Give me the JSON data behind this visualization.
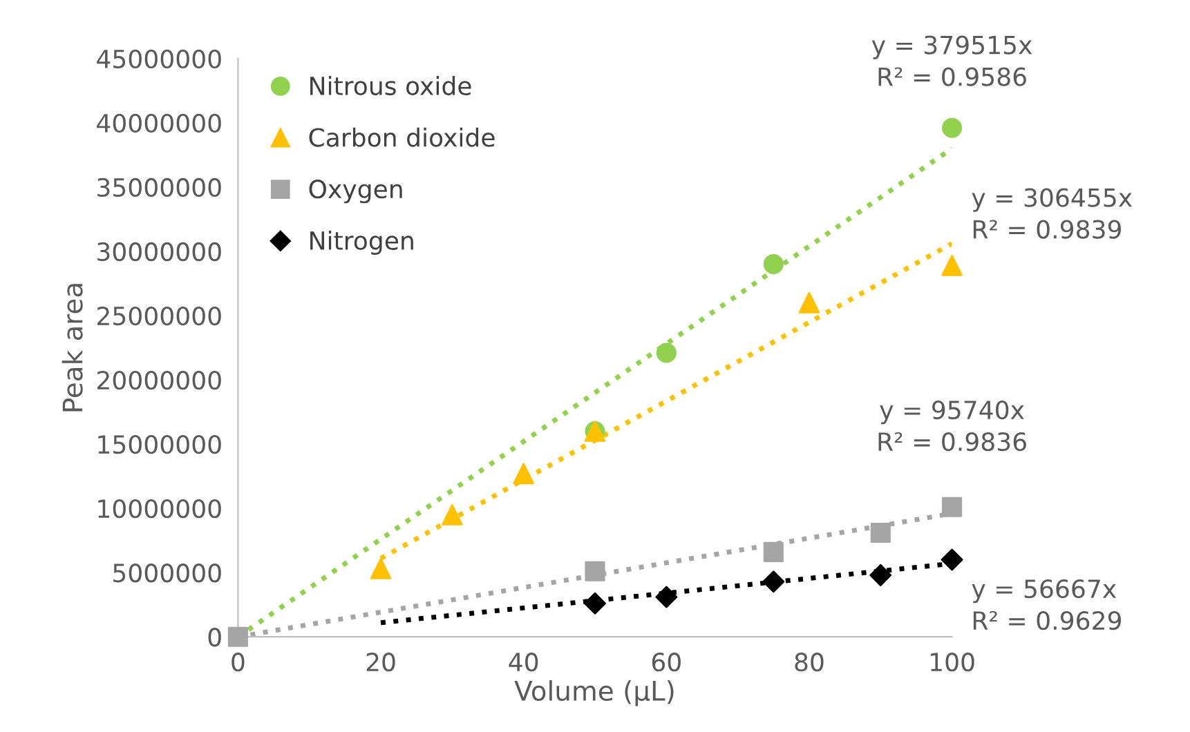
{
  "chart_data": {
    "type": "scatter",
    "xlabel": "Volume (µL)",
    "ylabel": "Peak area",
    "xlim": [
      0,
      100
    ],
    "xticks": [
      0,
      20,
      40,
      60,
      80,
      100
    ],
    "ylim": [
      0,
      45000000
    ],
    "yticks": [
      0,
      5000000,
      10000000,
      15000000,
      20000000,
      25000000,
      30000000,
      35000000,
      40000000,
      45000000
    ],
    "grid": false,
    "legend": "top left",
    "series": [
      {
        "name": "Nitrous oxide",
        "color": "#92d050",
        "marker": "circle",
        "x": [
          50,
          60,
          75,
          100
        ],
        "values": [
          16000000,
          22100000,
          29000000,
          39600000
        ]
      },
      {
        "name": "Carbon dioxide",
        "color": "#ffc000",
        "marker": "triangle",
        "x": [
          20,
          30,
          40,
          50,
          80,
          100
        ],
        "values": [
          5300000,
          9500000,
          12700000,
          16000000,
          26000000,
          28900000
        ]
      },
      {
        "name": "Oxygen",
        "color": "#a5a5a5",
        "marker": "square",
        "x": [
          0,
          50,
          75,
          90,
          100
        ],
        "values": [
          0,
          5100000,
          6600000,
          8100000,
          10100000
        ]
      },
      {
        "name": "Nitrogen",
        "color": "#000000",
        "marker": "diamond",
        "x": [
          50,
          60,
          75,
          90,
          100
        ],
        "values": [
          2600000,
          3100000,
          4300000,
          4800000,
          6000000
        ]
      },
      {
        "type": "line",
        "color": "#92d050",
        "line_style": "dotted",
        "marker": "none",
        "x": [
          0,
          100
        ],
        "values": [
          0,
          38000000
        ]
      },
      {
        "type": "line",
        "color": "#ffc000",
        "line_style": "dotted",
        "marker": "none",
        "x": [
          20,
          100
        ],
        "values": [
          6100000,
          30600000
        ]
      },
      {
        "type": "line",
        "color": "#a5a5a5",
        "line_style": "dotted",
        "marker": "none",
        "x": [
          0,
          100
        ],
        "values": [
          0,
          9600000
        ]
      },
      {
        "type": "line",
        "color": "#000000",
        "line_style": "dotted",
        "marker": "none",
        "x": [
          20,
          100
        ],
        "values": [
          1100000,
          5700000
        ]
      }
    ],
    "annotations": [
      "y = 379515x\nR² = 0.9586",
      "y = 306455x\nR² = 0.9839",
      "y = 95740x\nR² = 0.9836",
      "y = 56667x\nR² = 0.9629"
    ]
  }
}
